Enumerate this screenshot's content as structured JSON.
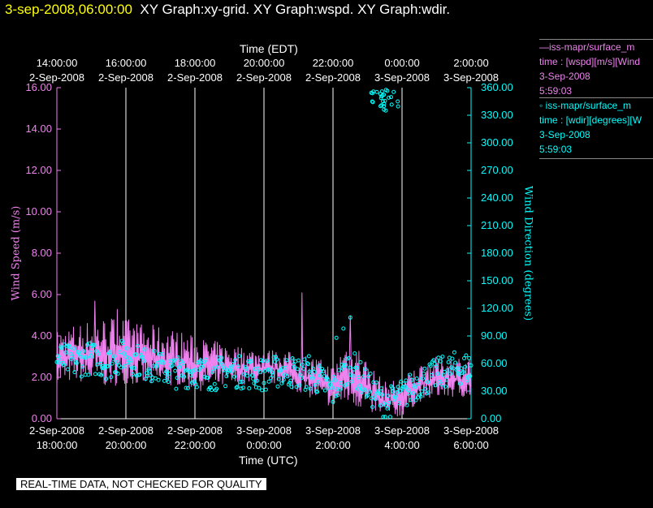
{
  "header": {
    "date": "3-sep-2008,06:00:00",
    "titles": "XY Graph:xy-grid.  XY Graph:wspd.  XY Graph:wdir."
  },
  "legend": {
    "wspd": {
      "line1": "—iss-mapr/surface_m",
      "line2": "time : [wspd][m/s][Wind",
      "line3": "3-Sep-2008",
      "line4": "5:59:03"
    },
    "wdir": {
      "line1": "◦ iss-mapr/surface_m",
      "line2": "time : [wdir][degrees][W",
      "line3": "3-Sep-2008",
      "line4": "5:59:03"
    }
  },
  "disclaimer": "REAL-TIME DATA, NOT CHECKED FOR QUALITY",
  "colors": {
    "wspd": "#ee82ee",
    "wdir": "#00ffff",
    "grid": "#ffffff",
    "background": "#000000",
    "header_date": "#ffff00"
  },
  "chart_data": {
    "type": "line",
    "top_axis_title": "Time (EDT)",
    "bottom_axis_title": "Time (UTC)",
    "x_range_hours_utc": [
      0,
      12
    ],
    "top_ticks": [
      {
        "t": 0,
        "time": "14:00:00",
        "date": "2-Sep-2008"
      },
      {
        "t": 2,
        "time": "16:00:00",
        "date": "2-Sep-2008"
      },
      {
        "t": 4,
        "time": "18:00:00",
        "date": "2-Sep-2008"
      },
      {
        "t": 6,
        "time": "20:00:00",
        "date": "2-Sep-2008"
      },
      {
        "t": 8,
        "time": "22:00:00",
        "date": "2-Sep-2008"
      },
      {
        "t": 10,
        "time": "0:00:00",
        "date": "3-Sep-2008"
      },
      {
        "t": 12,
        "time": "2:00:00",
        "date": "3-Sep-2008"
      }
    ],
    "bottom_ticks": [
      {
        "t": 0,
        "date": "2-Sep-2008",
        "time": "18:00:00"
      },
      {
        "t": 2,
        "date": "2-Sep-2008",
        "time": "20:00:00"
      },
      {
        "t": 4,
        "date": "2-Sep-2008",
        "time": "22:00:00"
      },
      {
        "t": 6,
        "date": "3-Sep-2008",
        "time": "0:00:00"
      },
      {
        "t": 8,
        "date": "3-Sep-2008",
        "time": "2:00:00"
      },
      {
        "t": 10,
        "date": "3-Sep-2008",
        "time": "4:00:00"
      },
      {
        "t": 12,
        "date": "3-Sep-2008",
        "time": "6:00:00"
      }
    ],
    "grid_lines_at_hours": [
      2,
      4,
      6,
      8,
      10
    ],
    "left_axis": {
      "label": "Wind Speed (m/s)",
      "range": [
        0,
        16
      ],
      "ticks": [
        "0.00",
        "2.00",
        "4.00",
        "6.00",
        "8.00",
        "10.00",
        "12.00",
        "14.00",
        "16.00"
      ]
    },
    "right_axis": {
      "label": "Wind Direction (degrees)",
      "range": [
        0,
        360
      ],
      "ticks": [
        "0.00",
        "30.00",
        "60.00",
        "90.00",
        "120.00",
        "150.00",
        "180.00",
        "210.00",
        "240.00",
        "270.00",
        "300.00",
        "330.00",
        "360.00"
      ]
    },
    "series": [
      {
        "name": "wspd",
        "units": "m/s",
        "style": "line",
        "hours": [
          0,
          0.5,
          1,
          1.5,
          2,
          2.5,
          3,
          3.5,
          4,
          4.5,
          5,
          5.5,
          6,
          6.5,
          7,
          7.5,
          8,
          8.5,
          9,
          9.5,
          10,
          10.5,
          11,
          11.5,
          12
        ],
        "envelope_low": [
          1.5,
          1.8,
          1.6,
          1.5,
          1.7,
          1.5,
          1.4,
          1.6,
          1.3,
          1.4,
          1.5,
          1.5,
          1.6,
          1.7,
          1.2,
          0.9,
          0.5,
          0.6,
          0.3,
          0.0,
          0.1,
          0.8,
          1.0,
          1.0,
          1.0
        ],
        "envelope_high": [
          4.3,
          4.6,
          4.8,
          5.0,
          4.9,
          4.6,
          4.5,
          4.3,
          4.0,
          3.8,
          3.6,
          3.5,
          3.4,
          3.3,
          3.2,
          3.0,
          2.6,
          4.3,
          2.8,
          1.8,
          2.0,
          2.7,
          3.0,
          3.1,
          3.0
        ],
        "peaks": [
          {
            "hour": 1.1,
            "value": 5.7
          },
          {
            "hour": 1.75,
            "value": 5.3
          },
          {
            "hour": 7.1,
            "value": 6.1
          },
          {
            "hour": 8.5,
            "value": 5.0
          }
        ]
      },
      {
        "name": "wdir",
        "units": "degrees",
        "style": "points",
        "hours": [
          0,
          0.5,
          1,
          1.5,
          2,
          2.5,
          3,
          3.5,
          4,
          4.5,
          5,
          5.5,
          6,
          6.5,
          7,
          7.5,
          8,
          8.5,
          9,
          9.5,
          10,
          10.5,
          11,
          11.5,
          12
        ],
        "values": [
          65,
          62,
          66,
          60,
          70,
          60,
          55,
          50,
          52,
          48,
          52,
          50,
          48,
          52,
          50,
          45,
          30,
          60,
          35,
          15,
          25,
          40,
          48,
          55,
          55
        ],
        "high_cluster": {
          "hours_from": 9.05,
          "hours_to": 9.9,
          "values_from": 335,
          "values_to": 358
        },
        "outliers": [
          {
            "hour": 8.1,
            "value": 88
          },
          {
            "hour": 8.3,
            "value": 98
          },
          {
            "hour": 8.5,
            "value": 110
          },
          {
            "hour": 7.3,
            "value": 68
          }
        ]
      }
    ]
  }
}
